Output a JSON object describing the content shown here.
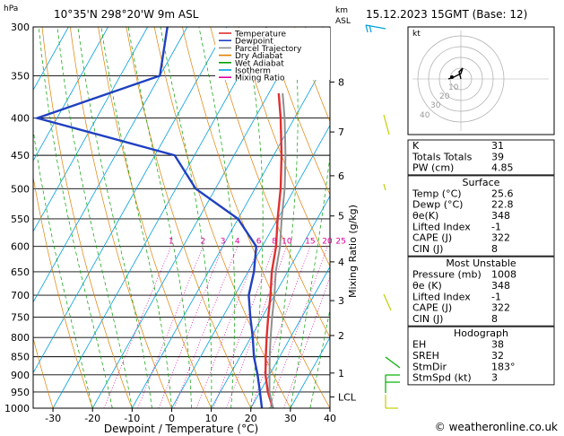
{
  "header": {
    "location": "10°35'N  298°20'W  9m ASL",
    "datetime": "15.12.2023  15GMT  (Base: 12)",
    "left_unit": "hPa",
    "km_label": "km",
    "asl_label": "ASL"
  },
  "footer": {
    "credit": "© weatheronline.co.uk"
  },
  "chart_data": {
    "type": "line",
    "title": "",
    "xlabel": "Dewpoint / Temperature (°C)",
    "ylabel": "hPa",
    "right_ylabel": "Mixing Ratio (g/kg)",
    "x_ticks": [
      -30,
      -20,
      -10,
      0,
      10,
      20,
      30,
      40
    ],
    "xlim": [
      -35,
      40
    ],
    "p_ticks": [
      300,
      350,
      400,
      450,
      500,
      550,
      600,
      650,
      700,
      750,
      800,
      850,
      900,
      950,
      1000
    ],
    "ylim_hpa": [
      1000,
      300
    ],
    "km_ticks": [
      {
        "label": "8",
        "p": 357
      },
      {
        "label": "7",
        "p": 418
      },
      {
        "label": "6",
        "p": 480
      },
      {
        "label": "5",
        "p": 545
      },
      {
        "label": "4",
        "p": 630
      },
      {
        "label": "3",
        "p": 712
      },
      {
        "label": "2",
        "p": 795
      },
      {
        "label": "1",
        "p": 895
      },
      {
        "label": "LCL",
        "p": 965
      }
    ],
    "mixing_ratio_labels": [
      "1",
      "2",
      "3",
      "4",
      "6",
      "8",
      "10",
      "15",
      "20",
      "25"
    ],
    "legend": [
      {
        "name": "Temperature",
        "color": "#e03030"
      },
      {
        "name": "Dewpoint",
        "color": "#2040c0"
      },
      {
        "name": "Parcel Trajectory",
        "color": "#909090"
      },
      {
        "name": "Dry Adiabat",
        "color": "#e08000"
      },
      {
        "name": "Wet Adiabat",
        "color": "#00a000"
      },
      {
        "name": "Isotherm",
        "color": "#00a0e0"
      },
      {
        "name": "Mixing Ratio",
        "color": "#e000a0"
      }
    ],
    "series": [
      {
        "name": "Temperature",
        "color": "#e03030",
        "points": [
          [
            1000,
            25.6
          ],
          [
            950,
            22.0
          ],
          [
            900,
            19.0
          ],
          [
            850,
            16.5
          ],
          [
            800,
            14.0
          ],
          [
            750,
            11.5
          ],
          [
            700,
            9.0
          ],
          [
            650,
            6.0
          ],
          [
            600,
            3.5
          ],
          [
            550,
            0.0
          ],
          [
            500,
            -3.5
          ],
          [
            450,
            -8.0
          ],
          [
            400,
            -13.5
          ],
          [
            370,
            -17.5
          ]
        ]
      },
      {
        "name": "Dewpoint",
        "color": "#2040c0",
        "points": [
          [
            1000,
            22.8
          ],
          [
            950,
            20.0
          ],
          [
            900,
            17.0
          ],
          [
            850,
            13.5
          ],
          [
            800,
            10.5
          ],
          [
            750,
            7.0
          ],
          [
            700,
            3.5
          ],
          [
            650,
            1.5
          ],
          [
            600,
            -1.5
          ],
          [
            550,
            -10.0
          ],
          [
            500,
            -25.0
          ],
          [
            450,
            -35.0
          ],
          [
            400,
            -75.0
          ],
          [
            350,
            -50.0
          ],
          [
            300,
            -55.0
          ]
        ]
      },
      {
        "name": "Parcel Trajectory",
        "color": "#909090",
        "points": [
          [
            1000,
            25.6
          ],
          [
            950,
            22.4
          ],
          [
            900,
            20.0
          ],
          [
            850,
            17.5
          ],
          [
            800,
            15.0
          ],
          [
            750,
            12.5
          ],
          [
            700,
            10.0
          ],
          [
            650,
            7.0
          ],
          [
            600,
            4.5
          ],
          [
            550,
            1.0
          ],
          [
            500,
            -2.5
          ],
          [
            450,
            -7.0
          ],
          [
            400,
            -12.5
          ],
          [
            370,
            -16.5
          ]
        ]
      }
    ]
  },
  "hodograph": {
    "unit_label": "kt",
    "ring_labels": [
      "10",
      "20",
      "30",
      "40"
    ]
  },
  "indices": {
    "rows": [
      {
        "label": "K",
        "value": "31"
      },
      {
        "label": "Totals Totals",
        "value": "39"
      },
      {
        "label": "PW (cm)",
        "value": "4.85"
      }
    ],
    "surface": {
      "title": "Surface",
      "rows": [
        {
          "label": "Temp (°C)",
          "value": "25.6"
        },
        {
          "label": "Dewp (°C)",
          "value": "22.8"
        },
        {
          "label": "θe(K)",
          "value": "348"
        },
        {
          "label": "Lifted Index",
          "value": "-1"
        },
        {
          "label": "CAPE (J)",
          "value": "322"
        },
        {
          "label": "CIN (J)",
          "value": "8"
        }
      ]
    },
    "most_unstable": {
      "title": "Most Unstable",
      "rows": [
        {
          "label": "Pressure (mb)",
          "value": "1008"
        },
        {
          "label": "θe (K)",
          "value": "348"
        },
        {
          "label": "Lifted Index",
          "value": "-1"
        },
        {
          "label": "CAPE (J)",
          "value": "322"
        },
        {
          "label": "CIN (J)",
          "value": "8"
        }
      ]
    },
    "hodograph_table": {
      "title": "Hodograph",
      "rows": [
        {
          "label": "EH",
          "value": "38"
        },
        {
          "label": "SREH",
          "value": "32"
        },
        {
          "label": "StmDir",
          "value": "183°"
        },
        {
          "label": "StmSpd (kt)",
          "value": "3"
        }
      ]
    }
  }
}
